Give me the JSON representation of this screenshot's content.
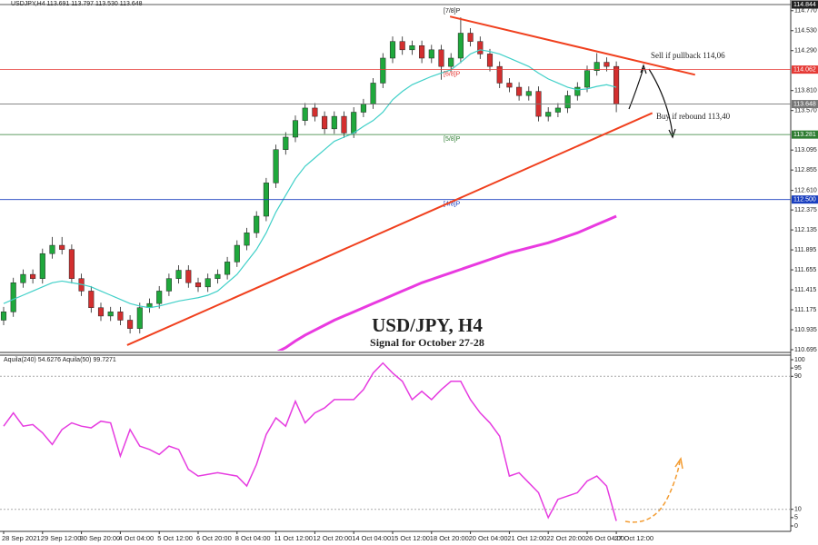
{
  "chart_data": {
    "type": "candlestick",
    "header": "USDJPY,H4  113.691 113.797 113.530 113.648",
    "title": "USD/JPY, H4",
    "subtitle": "Signal for October 27-28",
    "categories": [
      "28 Sep 2021",
      null,
      null,
      null,
      "29 Sep 12:00",
      null,
      null,
      null,
      "30 Sep 20:00",
      null,
      null,
      null,
      "4 Oct 04:00",
      null,
      null,
      null,
      "5 Oct 12:00",
      null,
      null,
      null,
      "6 Oct 20:00",
      null,
      null,
      null,
      "8 Oct 04:00",
      null,
      null,
      null,
      "11 Oct 12:00",
      null,
      null,
      null,
      "12 Oct 20:00",
      null,
      null,
      null,
      "14 Oct 04:00",
      null,
      null,
      null,
      "15 Oct 12:00",
      null,
      null,
      null,
      "18 Oct 20:00",
      null,
      null,
      null,
      "20 Oct 04:00",
      null,
      null,
      null,
      "21 Oct 12:00",
      null,
      null,
      null,
      "22 Oct 20:00",
      null,
      null,
      null,
      "26 Oct 04:00",
      null,
      null,
      "27 Oct 12:00"
    ],
    "open": [
      111.05,
      111.15,
      111.5,
      111.6,
      111.55,
      111.85,
      111.95,
      111.9,
      111.55,
      111.4,
      111.2,
      111.1,
      111.15,
      111.05,
      110.95,
      111.2,
      111.25,
      111.4,
      111.55,
      111.65,
      111.5,
      111.45,
      111.55,
      111.6,
      111.75,
      111.95,
      112.1,
      112.3,
      112.7,
      113.1,
      113.25,
      113.45,
      113.6,
      113.5,
      113.35,
      113.5,
      113.3,
      113.55,
      113.65,
      113.9,
      114.2,
      114.4,
      114.3,
      114.35,
      114.2,
      114.3,
      114.1,
      114.2,
      114.5,
      114.4,
      114.25,
      114.1,
      113.9,
      113.85,
      113.75,
      113.8,
      113.5,
      113.55,
      113.6,
      113.75,
      113.85,
      114.05,
      114.15,
      114.1
    ],
    "high": [
      111.21,
      111.56,
      111.66,
      111.66,
      111.91,
      112.05,
      112.05,
      111.96,
      111.61,
      111.46,
      111.26,
      111.21,
      111.21,
      111.11,
      111.26,
      111.31,
      111.46,
      111.61,
      111.71,
      111.71,
      111.56,
      111.61,
      111.66,
      111.81,
      112.01,
      112.16,
      112.36,
      112.76,
      113.16,
      113.31,
      113.51,
      113.66,
      113.66,
      113.56,
      113.56,
      113.56,
      113.61,
      113.71,
      113.96,
      114.26,
      114.46,
      114.46,
      114.41,
      114.41,
      114.36,
      114.36,
      114.26,
      114.69,
      114.56,
      114.46,
      114.31,
      114.16,
      113.96,
      113.91,
      113.86,
      113.86,
      113.61,
      113.66,
      113.81,
      113.91,
      114.11,
      114.26,
      114.21,
      114.16
    ],
    "low": [
      110.99,
      111.09,
      111.44,
      111.49,
      111.49,
      111.79,
      111.84,
      111.49,
      111.34,
      111.14,
      111.04,
      111.04,
      110.99,
      110.89,
      110.89,
      111.14,
      111.19,
      111.34,
      111.49,
      111.44,
      111.39,
      111.39,
      111.49,
      111.54,
      111.69,
      111.89,
      112.04,
      112.24,
      112.64,
      113.04,
      113.19,
      113.39,
      113.44,
      113.29,
      113.29,
      113.24,
      113.24,
      113.49,
      113.59,
      113.84,
      114.14,
      114.24,
      114.24,
      114.14,
      114.14,
      113.94,
      114.04,
      114.14,
      114.34,
      114.19,
      114.04,
      113.84,
      113.79,
      113.69,
      113.69,
      113.44,
      113.44,
      113.49,
      113.54,
      113.69,
      113.79,
      113.99,
      114.04,
      113.55
    ],
    "close": [
      111.15,
      111.5,
      111.6,
      111.55,
      111.85,
      111.95,
      111.9,
      111.55,
      111.4,
      111.2,
      111.1,
      111.15,
      111.05,
      110.95,
      111.2,
      111.25,
      111.4,
      111.55,
      111.65,
      111.5,
      111.45,
      111.55,
      111.6,
      111.75,
      111.95,
      112.1,
      112.3,
      112.7,
      113.1,
      113.25,
      113.45,
      113.6,
      113.5,
      113.35,
      113.5,
      113.3,
      113.55,
      113.65,
      113.9,
      114.2,
      114.4,
      114.3,
      114.35,
      114.2,
      114.3,
      114.1,
      114.2,
      114.5,
      114.4,
      114.25,
      114.1,
      113.9,
      113.85,
      113.75,
      113.8,
      113.5,
      113.55,
      113.6,
      113.75,
      113.85,
      114.05,
      114.15,
      114.1,
      113.648
    ],
    "up_color": "#1fa83c",
    "down_color": "#d32f2f",
    "series": [
      {
        "color": "#40d0c8",
        "values": [
          111.25,
          111.3,
          111.35,
          111.4,
          111.45,
          111.5,
          111.52,
          111.5,
          111.48,
          111.45,
          111.4,
          111.35,
          111.3,
          111.25,
          111.22,
          111.2,
          111.22,
          111.25,
          111.28,
          111.3,
          111.32,
          111.35,
          111.4,
          111.5,
          111.6,
          111.75,
          111.9,
          112.1,
          112.35,
          112.55,
          112.75,
          112.9,
          113.0,
          113.1,
          113.2,
          113.25,
          113.3,
          113.38,
          113.45,
          113.55,
          113.7,
          113.8,
          113.88,
          113.93,
          113.98,
          114.02,
          114.06,
          114.15,
          114.25,
          114.3,
          114.28,
          114.25,
          114.2,
          114.15,
          114.1,
          114.02,
          113.95,
          113.9,
          113.85,
          113.82,
          113.83,
          113.86,
          113.88,
          113.85
        ]
      },
      {
        "color": "#e93ae0",
        "values": [
          null,
          null,
          null,
          null,
          null,
          null,
          null,
          null,
          null,
          null,
          null,
          null,
          null,
          null,
          null,
          null,
          null,
          null,
          null,
          null,
          null,
          null,
          null,
          null,
          null,
          null,
          null,
          null,
          110.66,
          110.72,
          110.8,
          110.87,
          110.93,
          110.99,
          111.05,
          111.1,
          111.15,
          111.2,
          111.25,
          111.3,
          111.35,
          111.4,
          111.45,
          111.5,
          111.54,
          111.58,
          111.62,
          111.66,
          111.7,
          111.74,
          111.78,
          111.82,
          111.86,
          111.89,
          111.92,
          111.95,
          111.98,
          112.02,
          112.06,
          112.1,
          112.15,
          112.2,
          112.25,
          112.3
        ]
      }
    ],
    "ylim": [
      110.695,
      114.844
    ],
    "yticks": [
      {
        "value": 114.77,
        "label": "114.770"
      },
      {
        "value": 114.53,
        "label": "114.530"
      },
      {
        "value": 114.29,
        "label": "114.290"
      },
      {
        "value": 113.81,
        "label": "113.810"
      },
      {
        "value": 113.57,
        "label": "113.570"
      },
      {
        "value": 113.095,
        "label": "113.095"
      },
      {
        "value": 112.855,
        "label": "112.855"
      },
      {
        "value": 112.61,
        "label": "112.610"
      },
      {
        "value": 112.375,
        "label": "112.375"
      },
      {
        "value": 112.135,
        "label": "112.135"
      },
      {
        "value": 111.895,
        "label": "111.895"
      },
      {
        "value": 111.655,
        "label": "111.655"
      },
      {
        "value": 111.415,
        "label": "111.415"
      },
      {
        "value": 111.175,
        "label": "111.175"
      },
      {
        "value": 110.935,
        "label": "110.935"
      },
      {
        "value": 110.695,
        "label": "110.695"
      }
    ],
    "levels": [
      {
        "value": 114.844,
        "label": "114.844",
        "tag": "[7/8]P",
        "color": "#222222"
      },
      {
        "value": 114.062,
        "label": "114.062",
        "tag": "[6/8]P",
        "color": "#e53935"
      },
      {
        "value": 113.648,
        "label": "113.648",
        "color": "#777777"
      },
      {
        "value": 113.281,
        "label": "113.281",
        "tag": "[5/8]P",
        "color": "#2e7d32"
      },
      {
        "value": 112.5,
        "label": "112.500",
        "tag": "[4/8]P",
        "color": "#1a3fbf"
      }
    ],
    "trendlines": [
      {
        "color": "#f0401e",
        "points": [
          [
            45.9,
            114.7
          ],
          [
            71.1,
            114.0
          ]
        ]
      },
      {
        "color": "#f0401e",
        "points": [
          [
            12.7,
            110.75
          ],
          [
            66.7,
            113.54
          ]
        ]
      }
    ],
    "annotations": [
      "Sell if pullback 114,06",
      "Buy if rebound 113,40"
    ],
    "indicator": {
      "header": "Aquila(240) 54.6276  Aquila(50) 99.7271",
      "color": "#e63ce0",
      "values": [
        60,
        68,
        60,
        61,
        56,
        49,
        58,
        62,
        60,
        59,
        63,
        62,
        42,
        58,
        48,
        46,
        43,
        48,
        46,
        34,
        30,
        31,
        32,
        31,
        30,
        24,
        37,
        55,
        65,
        60,
        75,
        62,
        68,
        71,
        76,
        76,
        76,
        82,
        92,
        98,
        92,
        87,
        76,
        81,
        76,
        82,
        87,
        87,
        76,
        68,
        62,
        54,
        30,
        32,
        26,
        20,
        5,
        16,
        18,
        20,
        27,
        30,
        24,
        3
      ],
      "ylim": [
        0,
        100
      ],
      "yticks": [
        100,
        95,
        90,
        10,
        5,
        0
      ],
      "levels": [
        90,
        10
      ]
    }
  }
}
